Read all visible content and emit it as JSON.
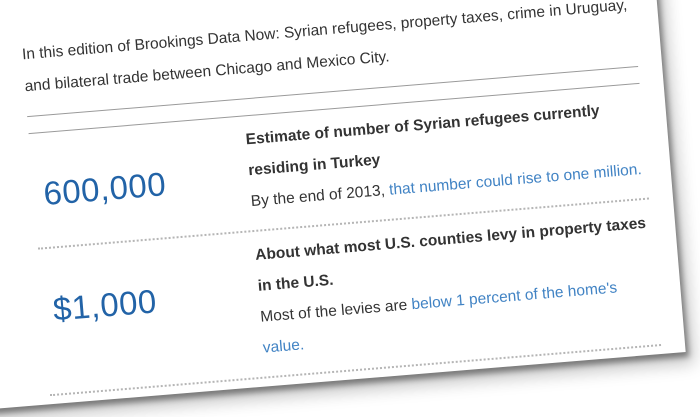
{
  "page": {
    "intro": {
      "line1": "In this edition of Brookings Data Now: Syrian refugees, property taxes, crime in Uruguay,",
      "line2": "and bilateral trade between Chicago and Mexico City."
    },
    "stats": [
      {
        "value": "600,000",
        "title_line1": "Estimate of number of Syrian refugees currently",
        "title_line2": "residing in Turkey",
        "body_text": "By the end of 2013, ",
        "body_link": "that number could rise to one million."
      },
      {
        "value": "$1,000",
        "title_line1": "About what most U.S. counties levy in property taxes",
        "title_line2": "in the U.S.",
        "body_text": "Most of the levies are ",
        "body_link": "below 1 percent of the home's",
        "body_link_line2": "value."
      }
    ],
    "colors": {
      "stat_value_blue": "#2263a7",
      "link_blue": "#4183c4",
      "body_text": "#333333",
      "divider_gray": "#9a9a9a",
      "dotted_gray": "#b5b5b5"
    }
  }
}
